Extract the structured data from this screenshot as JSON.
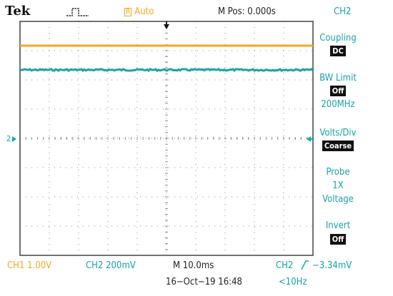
{
  "header": {
    "brand": "Tek",
    "acq_icon": "pulse-waveform-icon",
    "trigger_state_box": "R",
    "trigger_state": "Auto",
    "main_position": "M Pos: 0.000s",
    "menu_channel": "CH2"
  },
  "menu": {
    "coupling_label": "Coupling",
    "coupling_value": "DC",
    "bw_label": "BW Limit",
    "bw_value": "Off",
    "bw_freq": "200MHz",
    "voltsdiv_label": "Volts/Div",
    "voltsdiv_value": "Coarse",
    "probe_label": "Probe",
    "probe_atten": "1X",
    "probe_type": "Voltage",
    "invert_label": "Invert",
    "invert_value": "Off"
  },
  "screen": {
    "ch2_marker": "2",
    "ch2_marker_icon": "ch2-ground-marker-icon",
    "trigger_pos_icon": "trigger-position-arrow-icon",
    "trigger_level_icon": "trigger-level-arrow-icon"
  },
  "footer": {
    "ch1_scale": "CH1  1.00V",
    "ch2_scale": "CH2  200mV",
    "timebase": "M 10.0ms",
    "trigger_source": "CH2",
    "trigger_slope_icon": "rising-edge-icon",
    "trigger_level": "−3.34mV",
    "date_time": "16−Oct−19 16:48",
    "trigger_freq": "<10Hz"
  },
  "colors": {
    "ch1": "#f5a623",
    "ch2": "#19a3a6",
    "grid": "#8a8a8a",
    "border": "#444444"
  }
}
